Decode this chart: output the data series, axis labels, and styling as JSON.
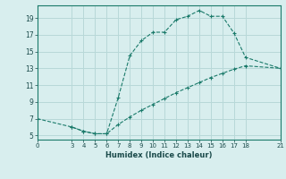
{
  "line1_x": [
    0,
    3,
    4,
    5,
    6,
    7,
    8,
    9,
    10,
    11,
    12,
    13,
    14,
    15,
    16,
    17,
    18,
    21
  ],
  "line1_y": [
    7,
    6.0,
    5.5,
    5.2,
    5.2,
    9.5,
    14.5,
    16.3,
    17.3,
    17.3,
    18.8,
    19.2,
    19.9,
    19.2,
    19.2,
    17.2,
    14.3,
    13
  ],
  "line2_x": [
    3,
    4,
    5,
    6,
    7,
    8,
    9,
    10,
    11,
    12,
    13,
    14,
    15,
    16,
    17,
    18,
    21
  ],
  "line2_y": [
    6.0,
    5.5,
    5.2,
    5.2,
    6.3,
    7.2,
    8.0,
    8.7,
    9.4,
    10.1,
    10.7,
    11.3,
    11.9,
    12.4,
    12.9,
    13.3,
    13
  ],
  "color": "#1a7a6a",
  "bg_color": "#d8eeee",
  "grid_color": "#b8d8d8",
  "xlabel": "Humidex (Indice chaleur)",
  "xlim": [
    0,
    21
  ],
  "ylim": [
    4.5,
    20.5
  ],
  "xticks": [
    0,
    3,
    4,
    5,
    6,
    7,
    8,
    9,
    10,
    11,
    12,
    13,
    14,
    15,
    16,
    17,
    18,
    21
  ],
  "yticks": [
    5,
    7,
    9,
    11,
    13,
    15,
    17,
    19
  ],
  "markersize": 3.0,
  "linewidth": 0.8
}
